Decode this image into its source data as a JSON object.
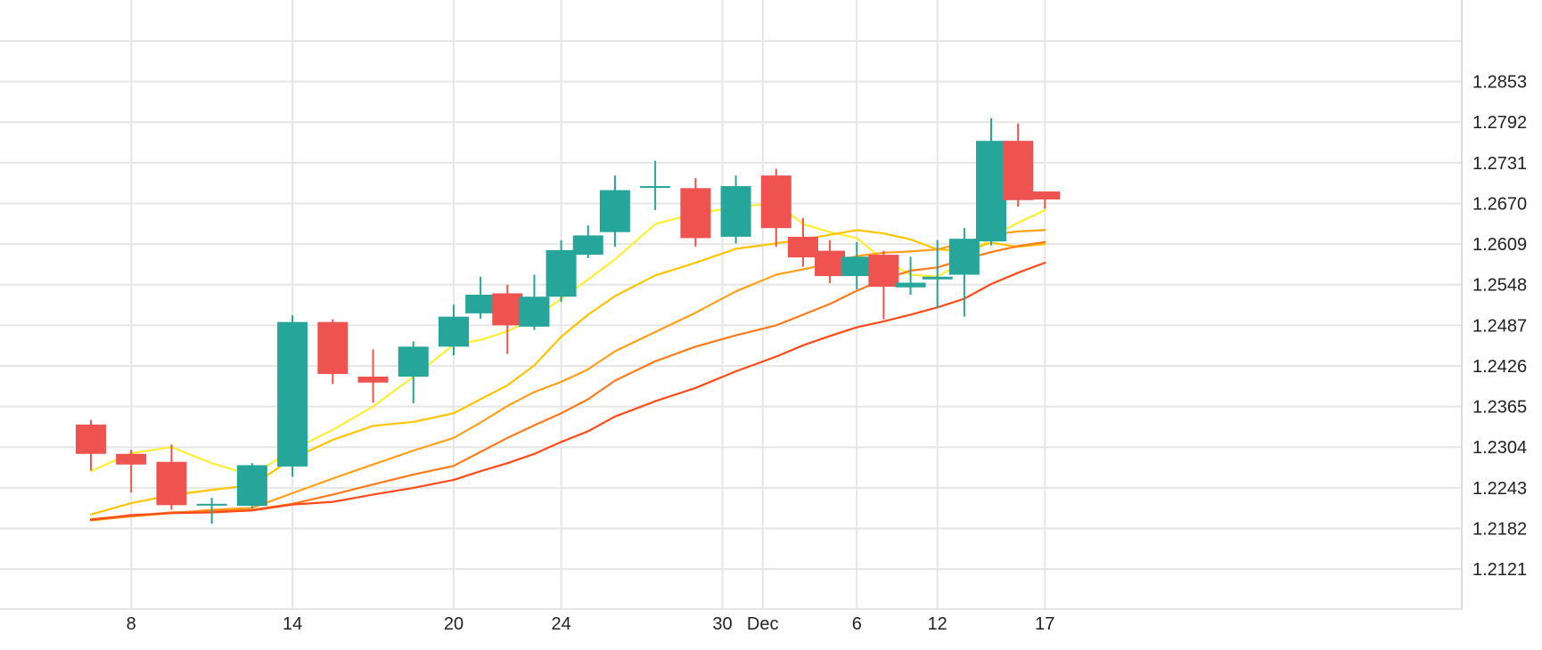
{
  "chart_data": {
    "type": "candlestick",
    "x_tick_labels": [
      "8",
      "14",
      "20",
      "24",
      "30",
      "Dec",
      "6",
      "12",
      "17"
    ],
    "y_tick_labels": [
      "1.2121",
      "1.2182",
      "1.2243",
      "1.2304",
      "1.2365",
      "1.2426",
      "1.2487",
      "1.2548",
      "1.2609",
      "1.2670",
      "1.2731",
      "1.2792",
      "1.2853"
    ],
    "ylim": [
      1.2061,
      1.2914
    ],
    "grid": true,
    "candles": [
      {
        "x": 6.5,
        "open": 1.2338,
        "high": 1.2345,
        "low": 1.2269,
        "close": 1.2294
      },
      {
        "x": 8.0,
        "open": 1.2294,
        "high": 1.23,
        "low": 1.2236,
        "close": 1.2278
      },
      {
        "x": 9.5,
        "open": 1.2282,
        "high": 1.2308,
        "low": 1.221,
        "close": 1.2217
      },
      {
        "x": 11.0,
        "open": 1.2219,
        "high": 1.2228,
        "low": 1.2189,
        "close": 1.2219
      },
      {
        "x": 12.5,
        "open": 1.2216,
        "high": 1.228,
        "low": 1.2212,
        "close": 1.2277
      },
      {
        "x": 14.0,
        "open": 1.2275,
        "high": 1.2502,
        "low": 1.226,
        "close": 1.2492
      },
      {
        "x": 15.5,
        "open": 1.2492,
        "high": 1.2496,
        "low": 1.2399,
        "close": 1.2414
      },
      {
        "x": 17.0,
        "open": 1.241,
        "high": 1.2451,
        "low": 1.2371,
        "close": 1.2401
      },
      {
        "x": 18.5,
        "open": 1.241,
        "high": 1.2463,
        "low": 1.237,
        "close": 1.2455
      },
      {
        "x": 20.0,
        "open": 1.2455,
        "high": 1.2518,
        "low": 1.2442,
        "close": 1.25
      },
      {
        "x": 21.0,
        "open": 1.2505,
        "high": 1.256,
        "low": 1.2497,
        "close": 1.2533
      },
      {
        "x": 22.0,
        "open": 1.2535,
        "high": 1.2548,
        "low": 1.2444,
        "close": 1.2487
      },
      {
        "x": 23.0,
        "open": 1.2485,
        "high": 1.2563,
        "low": 1.248,
        "close": 1.253
      },
      {
        "x": 24.0,
        "open": 1.253,
        "high": 1.2615,
        "low": 1.2522,
        "close": 1.26
      },
      {
        "x": 25.0,
        "open": 1.2593,
        "high": 1.2637,
        "low": 1.2588,
        "close": 1.2622
      },
      {
        "x": 26.0,
        "open": 1.2627,
        "high": 1.2712,
        "low": 1.2605,
        "close": 1.269
      },
      {
        "x": 27.5,
        "open": 1.2696,
        "high": 1.2734,
        "low": 1.266,
        "close": 1.2696
      },
      {
        "x": 29.0,
        "open": 1.2693,
        "high": 1.2708,
        "low": 1.2605,
        "close": 1.2618
      },
      {
        "x": 30.5,
        "open": 1.262,
        "high": 1.2712,
        "low": 1.261,
        "close": 1.2696
      },
      {
        "x": 32.0,
        "open": 1.2712,
        "high": 1.2722,
        "low": 1.2605,
        "close": 1.2633
      },
      {
        "x": 33.0,
        "open": 1.262,
        "high": 1.2648,
        "low": 1.2575,
        "close": 1.2589
      },
      {
        "x": 34.0,
        "open": 1.2599,
        "high": 1.2615,
        "low": 1.255,
        "close": 1.2561
      },
      {
        "x": 35.0,
        "open": 1.2561,
        "high": 1.2612,
        "low": 1.2541,
        "close": 1.259
      },
      {
        "x": 36.0,
        "open": 1.2593,
        "high": 1.2599,
        "low": 1.2496,
        "close": 1.2545
      },
      {
        "x": 37.0,
        "open": 1.2544,
        "high": 1.259,
        "low": 1.2533,
        "close": 1.2551
      },
      {
        "x": 38.0,
        "open": 1.2556,
        "high": 1.2615,
        "low": 1.2512,
        "close": 1.256
      },
      {
        "x": 39.0,
        "open": 1.2563,
        "high": 1.2633,
        "low": 1.25,
        "close": 1.2617
      },
      {
        "x": 40.0,
        "open": 1.2613,
        "high": 1.2798,
        "low": 1.2607,
        "close": 1.2764
      },
      {
        "x": 41.0,
        "open": 1.2764,
        "high": 1.279,
        "low": 1.2665,
        "close": 1.2675
      },
      {
        "x": 42.0,
        "open": 1.2688,
        "high": 1.2688,
        "low": 1.2662,
        "close": 1.2676
      }
    ],
    "moving_averages": [
      {
        "color": "#ffee33",
        "points": [
          [
            6.5,
            1.2268
          ],
          [
            8.0,
            1.2295
          ],
          [
            9.5,
            1.2304
          ],
          [
            11.0,
            1.228
          ],
          [
            12.5,
            1.2262
          ],
          [
            14.0,
            1.23
          ],
          [
            15.5,
            1.233
          ],
          [
            17.0,
            1.2365
          ],
          [
            18.5,
            1.241
          ],
          [
            20.0,
            1.2458
          ],
          [
            21.0,
            1.2465
          ],
          [
            22.0,
            1.2478
          ],
          [
            23.0,
            1.2498
          ],
          [
            24.0,
            1.2527
          ],
          [
            25.0,
            1.2556
          ],
          [
            26.0,
            1.2586
          ],
          [
            27.5,
            1.2639
          ],
          [
            29.0,
            1.2655
          ],
          [
            30.5,
            1.2664
          ],
          [
            32.0,
            1.2671
          ],
          [
            33.0,
            1.2639
          ],
          [
            34.0,
            1.2627
          ],
          [
            35.0,
            1.2618
          ],
          [
            36.0,
            1.2585
          ],
          [
            37.0,
            1.2563
          ],
          [
            38.0,
            1.256
          ],
          [
            39.0,
            1.2583
          ],
          [
            40.0,
            1.262
          ],
          [
            41.0,
            1.2641
          ],
          [
            42.0,
            1.266
          ]
        ]
      },
      {
        "color": "#ffc400",
        "points": [
          [
            6.5,
            1.2203
          ],
          [
            8.0,
            1.222
          ],
          [
            9.5,
            1.2232
          ],
          [
            11.0,
            1.224
          ],
          [
            12.5,
            1.2247
          ],
          [
            14.0,
            1.2287
          ],
          [
            15.5,
            1.2315
          ],
          [
            17.0,
            1.2336
          ],
          [
            18.5,
            1.2342
          ],
          [
            20.0,
            1.2355
          ],
          [
            21.0,
            1.2376
          ],
          [
            22.0,
            1.2397
          ],
          [
            23.0,
            1.2427
          ],
          [
            24.0,
            1.247
          ],
          [
            25.0,
            1.2503
          ],
          [
            26.0,
            1.2531
          ],
          [
            27.5,
            1.2562
          ],
          [
            29.0,
            1.2581
          ],
          [
            30.5,
            1.2602
          ],
          [
            32.0,
            1.261
          ],
          [
            33.0,
            1.2616
          ],
          [
            34.0,
            1.2623
          ],
          [
            35.0,
            1.263
          ],
          [
            36.0,
            1.2625
          ],
          [
            37.0,
            1.2616
          ],
          [
            38.0,
            1.2601
          ],
          [
            39.0,
            1.2599
          ],
          [
            40.0,
            1.2611
          ],
          [
            41.0,
            1.2605
          ],
          [
            42.0,
            1.2609
          ]
        ]
      },
      {
        "color": "#ff9f1a",
        "points": [
          [
            6.5,
            1.2194
          ],
          [
            8.0,
            1.22
          ],
          [
            9.5,
            1.2205
          ],
          [
            11.0,
            1.221
          ],
          [
            12.5,
            1.2213
          ],
          [
            14.0,
            1.2235
          ],
          [
            15.5,
            1.2257
          ],
          [
            17.0,
            1.2278
          ],
          [
            18.5,
            1.2299
          ],
          [
            20.0,
            1.2318
          ],
          [
            21.0,
            1.2341
          ],
          [
            22.0,
            1.2366
          ],
          [
            23.0,
            1.2387
          ],
          [
            24.0,
            1.2402
          ],
          [
            25.0,
            1.2421
          ],
          [
            26.0,
            1.2448
          ],
          [
            27.5,
            1.2477
          ],
          [
            29.0,
            1.2506
          ],
          [
            30.5,
            1.2538
          ],
          [
            32.0,
            1.2563
          ],
          [
            33.0,
            1.2571
          ],
          [
            34.0,
            1.258
          ],
          [
            35.0,
            1.2591
          ],
          [
            36.0,
            1.2596
          ],
          [
            37.0,
            1.2598
          ],
          [
            38.0,
            1.2601
          ],
          [
            39.0,
            1.2611
          ],
          [
            40.0,
            1.2623
          ],
          [
            41.0,
            1.2628
          ],
          [
            42.0,
            1.263
          ]
        ]
      },
      {
        "color": "#ff7a1a",
        "points": [
          [
            6.5,
            1.2196
          ],
          [
            8.0,
            1.2201
          ],
          [
            9.5,
            1.2206
          ],
          [
            11.0,
            1.2208
          ],
          [
            12.5,
            1.221
          ],
          [
            14.0,
            1.2219
          ],
          [
            15.5,
            1.2233
          ],
          [
            17.0,
            1.2248
          ],
          [
            18.5,
            1.2263
          ],
          [
            20.0,
            1.2276
          ],
          [
            21.0,
            1.2297
          ],
          [
            22.0,
            1.2318
          ],
          [
            23.0,
            1.2337
          ],
          [
            24.0,
            1.2355
          ],
          [
            25.0,
            1.2376
          ],
          [
            26.0,
            1.2404
          ],
          [
            27.5,
            1.2433
          ],
          [
            29.0,
            1.2455
          ],
          [
            30.5,
            1.2472
          ],
          [
            32.0,
            1.2487
          ],
          [
            33.0,
            1.2503
          ],
          [
            34.0,
            1.2519
          ],
          [
            35.0,
            1.2539
          ],
          [
            36.0,
            1.2556
          ],
          [
            37.0,
            1.2569
          ],
          [
            38.0,
            1.2574
          ],
          [
            39.0,
            1.2586
          ],
          [
            40.0,
            1.2597
          ],
          [
            41.0,
            1.2606
          ],
          [
            42.0,
            1.2612
          ]
        ]
      },
      {
        "color": "#ff4a1a",
        "points": [
          [
            6.5,
            1.2195
          ],
          [
            8.0,
            1.2202
          ],
          [
            9.5,
            1.2205
          ],
          [
            11.0,
            1.2206
          ],
          [
            12.5,
            1.2209
          ],
          [
            14.0,
            1.2218
          ],
          [
            15.5,
            1.2222
          ],
          [
            17.0,
            1.2233
          ],
          [
            18.5,
            1.2243
          ],
          [
            20.0,
            1.2255
          ],
          [
            21.0,
            1.2268
          ],
          [
            22.0,
            1.228
          ],
          [
            23.0,
            1.2294
          ],
          [
            24.0,
            1.2312
          ],
          [
            25.0,
            1.2328
          ],
          [
            26.0,
            1.235
          ],
          [
            27.5,
            1.2373
          ],
          [
            29.0,
            1.2393
          ],
          [
            30.5,
            1.2418
          ],
          [
            32.0,
            1.244
          ],
          [
            33.0,
            1.2457
          ],
          [
            34.0,
            1.2471
          ],
          [
            35.0,
            1.2484
          ],
          [
            36.0,
            1.2493
          ],
          [
            37.0,
            1.2503
          ],
          [
            38.0,
            1.2514
          ],
          [
            39.0,
            1.2527
          ],
          [
            40.0,
            1.2549
          ],
          [
            41.0,
            1.2566
          ],
          [
            42.0,
            1.2581
          ]
        ]
      }
    ],
    "colors": {
      "up": "#26a69a",
      "down": "#ef5350",
      "grid": "#e6e6e6",
      "axis": "#dddddd",
      "label": "#222222"
    }
  }
}
